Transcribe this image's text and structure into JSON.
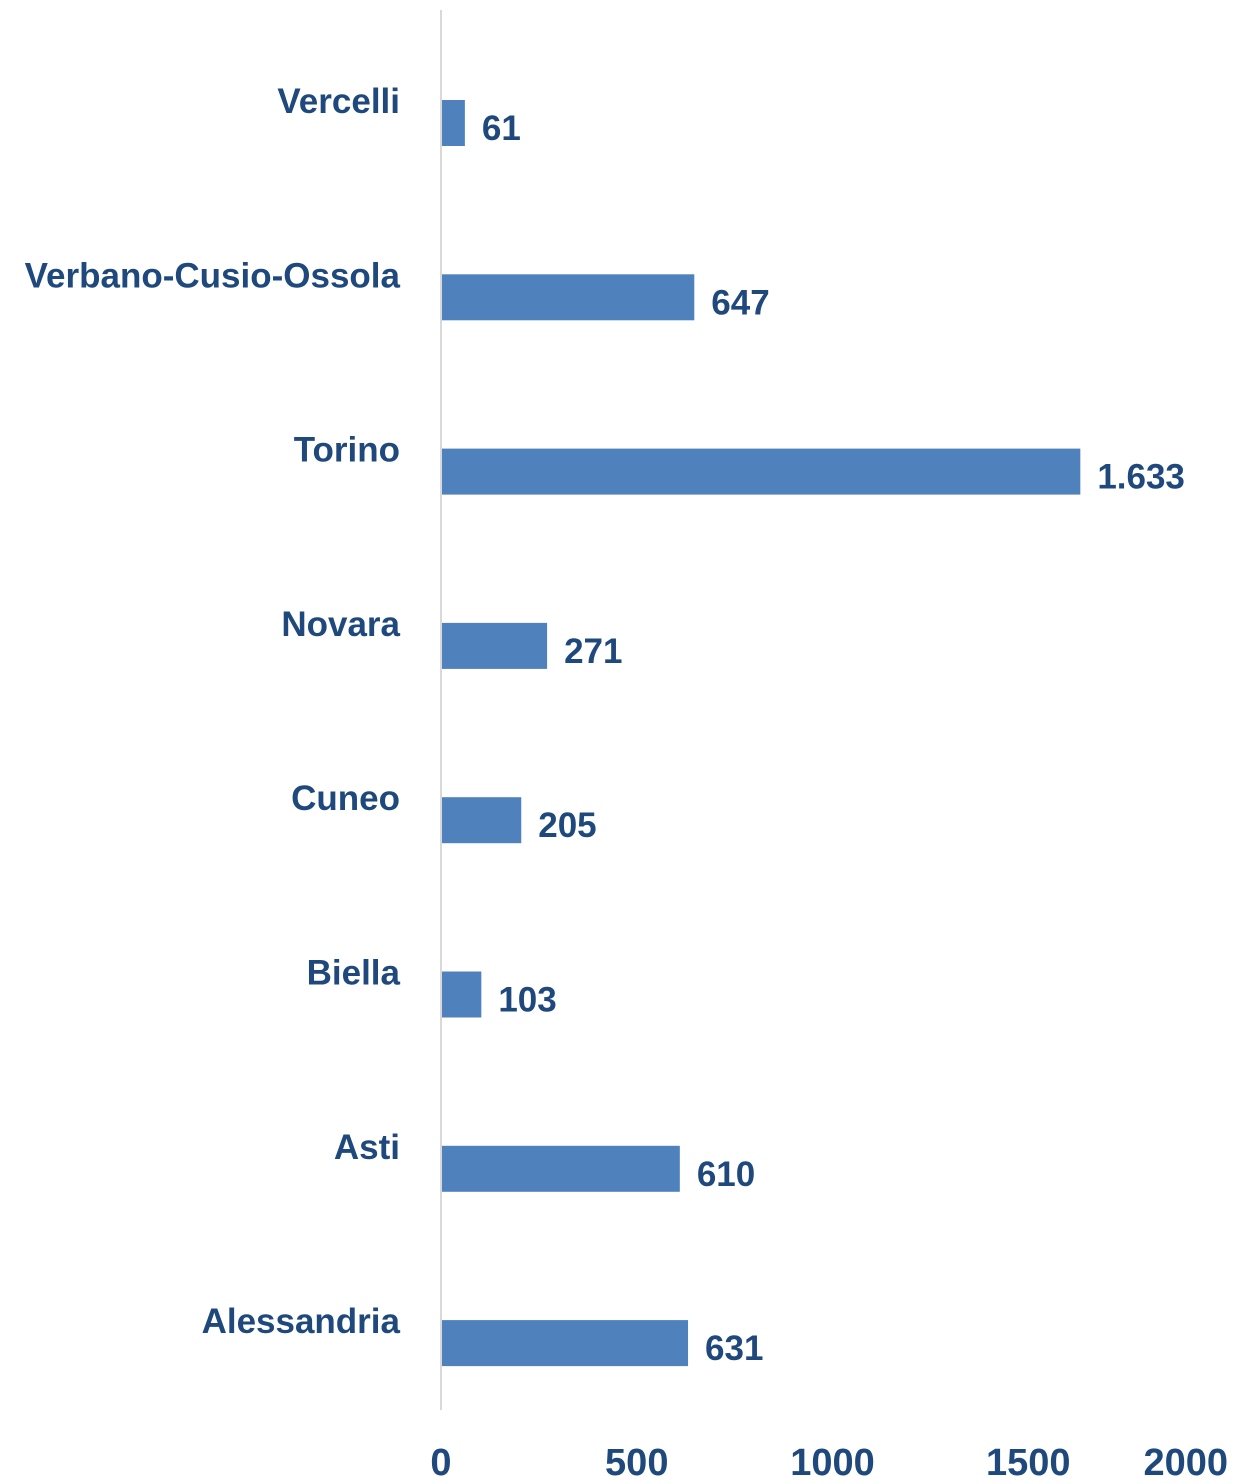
{
  "chart_data": {
    "type": "bar",
    "orientation": "horizontal",
    "categories": [
      "Vercelli",
      "Verbano-Cusio-Ossola",
      "Torino",
      "Novara",
      "Cuneo",
      "Biella",
      "Asti",
      "Alessandria"
    ],
    "values": [
      61,
      647,
      1633,
      271,
      205,
      103,
      610,
      631
    ],
    "data_labels": [
      "61",
      "647",
      "1.633",
      "271",
      "205",
      "103",
      "610",
      "631"
    ],
    "title": "",
    "xlabel": "",
    "ylabel": "",
    "xlim": [
      0,
      2000
    ],
    "x_ticks": [
      "0",
      "500",
      "1000",
      "1500",
      "2000"
    ],
    "x_tick_values": [
      0,
      500,
      1000,
      1500,
      2000
    ],
    "grid": false,
    "legend": "none",
    "bar_color": "#4F81BD",
    "text_color": "#1F497D",
    "axis_color": "#D9D9D9"
  }
}
